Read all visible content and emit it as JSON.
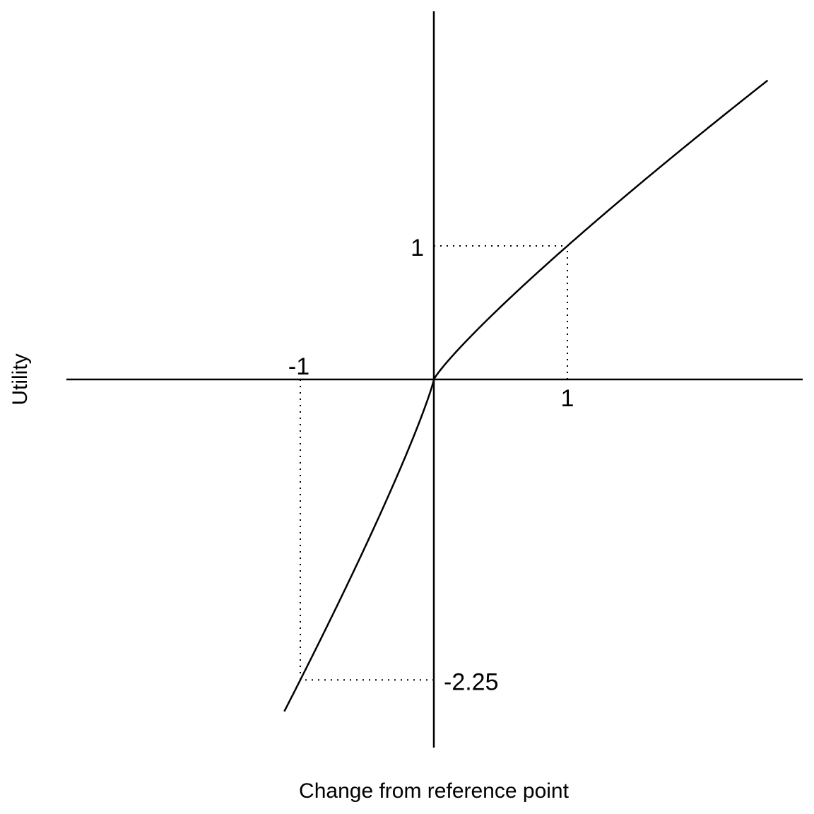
{
  "chart_data": {
    "type": "line",
    "title": "",
    "xlabel": "Change from reference point",
    "ylabel": "Utility",
    "xlim": [
      -2.75,
      2.75
    ],
    "ylim": [
      -2.75,
      2.25
    ],
    "grid": false,
    "legend": "none",
    "function": {
      "alpha": 0.88,
      "beta": 0.88,
      "lambda": 2.25
    },
    "x_tick_labels": [
      "-1",
      "1"
    ],
    "y_tick_labels": [
      "1",
      "-2.25"
    ],
    "reference_points": [
      {
        "x": 1,
        "y": 1
      },
      {
        "x": -1,
        "y": -2.25
      }
    ],
    "series": [
      {
        "x": [
          -1.12,
          -1,
          -0.75,
          -0.5,
          -0.25,
          -0.1,
          0,
          0.1,
          0.25,
          0.5,
          0.75,
          1,
          1.5,
          2,
          2.5
        ],
        "y": [
          -2.5,
          -2.25,
          -1.74,
          -1.23,
          -0.66,
          -0.3,
          0,
          0.13,
          0.3,
          0.54,
          0.78,
          1,
          1.43,
          1.84,
          2.24
        ]
      }
    ],
    "colors": {
      "line": "#000000",
      "axis": "#000000",
      "guide": "#000000"
    }
  }
}
